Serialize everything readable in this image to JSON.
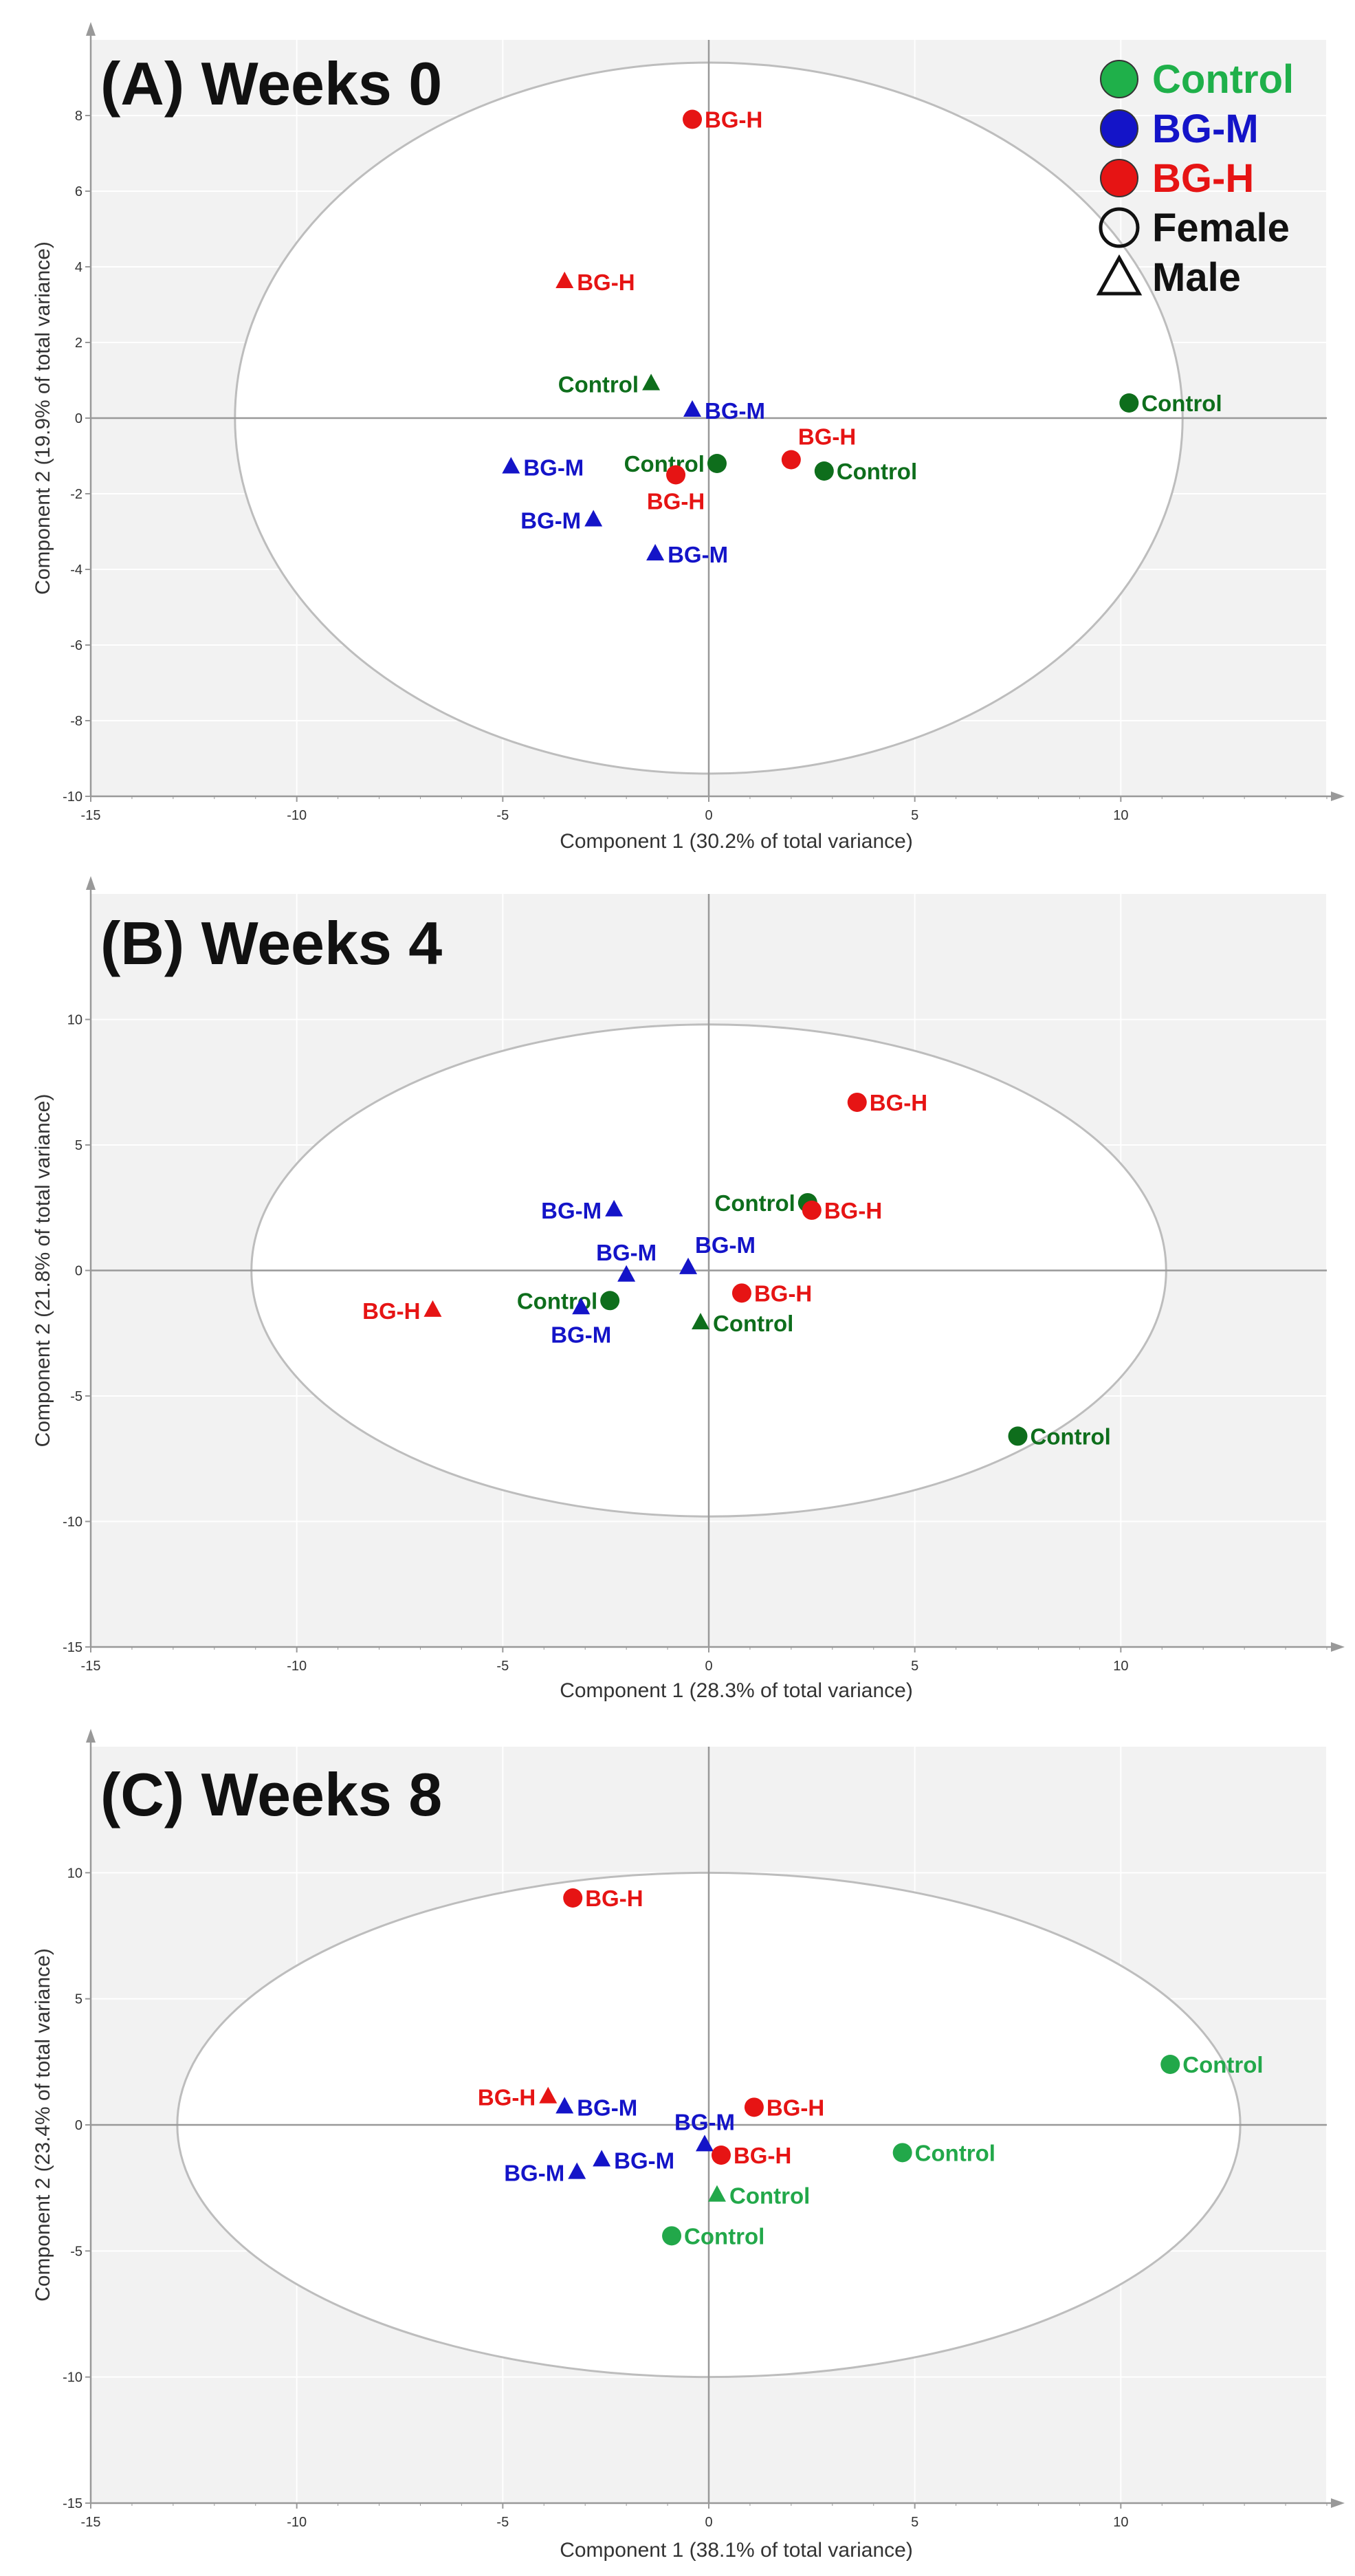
{
  "colors": {
    "control_dark": "#0e6e1c",
    "control_light": "#22a84a",
    "bg_m": "#1414c8",
    "bg_h": "#e61414",
    "plot_bg": "#f2f2f2",
    "axis": "#999999",
    "ellipse": "#bdbdbd"
  },
  "legend": {
    "items": [
      {
        "label": "Control",
        "marker": "circle",
        "color": "#1fb04a"
      },
      {
        "label": "BG-M",
        "marker": "circle",
        "color": "#1414c8"
      },
      {
        "label": "BG-H",
        "marker": "circle",
        "color": "#e61414"
      },
      {
        "label": "Female",
        "marker": "circle-outline",
        "color": "#111111"
      },
      {
        "label": "Male",
        "marker": "triangle-outline",
        "color": "#111111"
      }
    ]
  },
  "chart_data": [
    {
      "type": "scatter",
      "title": "(A) Weeks 0",
      "xlabel": "Component 1 (30.2% of total variance)",
      "ylabel": "Component 2 (19.9% of total variance)",
      "xlim": [
        -15,
        15
      ],
      "ylim": [
        -10,
        10
      ],
      "xticks": [
        -15,
        -10,
        -5,
        0,
        5,
        10
      ],
      "yticks": [
        -10,
        -8,
        -6,
        -4,
        -2,
        0,
        2,
        4,
        6,
        8
      ],
      "grid": true,
      "ellipse": {
        "cx": 0,
        "cy": 0,
        "rx": 11.5,
        "ry": 9.4
      },
      "points": [
        {
          "x": -0.4,
          "y": 7.9,
          "group": "BG-H",
          "sex": "Female",
          "label": "BG-H",
          "label_side": "right"
        },
        {
          "x": -3.5,
          "y": 3.6,
          "group": "BG-H",
          "sex": "Male",
          "label": "BG-H",
          "label_side": "right"
        },
        {
          "x": -1.4,
          "y": 0.9,
          "group": "Control",
          "sex": "Male",
          "label": "Control",
          "label_side": "left"
        },
        {
          "x": -0.4,
          "y": 0.2,
          "group": "BG-M",
          "sex": "Male",
          "label": "BG-M",
          "label_side": "right"
        },
        {
          "x": 10.2,
          "y": 0.4,
          "group": "Control",
          "sex": "Female",
          "label": "Control",
          "label_side": "right"
        },
        {
          "x": -4.8,
          "y": -1.3,
          "group": "BG-M",
          "sex": "Male",
          "label": "BG-M",
          "label_side": "right"
        },
        {
          "x": 0.2,
          "y": -1.2,
          "group": "Control",
          "sex": "Female",
          "label": "Control",
          "label_side": "left"
        },
        {
          "x": 2.0,
          "y": -1.1,
          "group": "BG-H",
          "sex": "Female",
          "label": "BG-H",
          "label_side": "upright"
        },
        {
          "x": 2.8,
          "y": -1.4,
          "group": "Control",
          "sex": "Female",
          "label": "Control",
          "label_side": "right"
        },
        {
          "x": -0.8,
          "y": -1.5,
          "group": "BG-H",
          "sex": "Female",
          "label": "BG-H",
          "label_side": "below"
        },
        {
          "x": -2.8,
          "y": -2.7,
          "group": "BG-M",
          "sex": "Male",
          "label": "BG-M",
          "label_side": "left"
        },
        {
          "x": -1.3,
          "y": -3.6,
          "group": "BG-M",
          "sex": "Male",
          "label": "BG-M",
          "label_side": "right"
        }
      ]
    },
    {
      "type": "scatter",
      "title": "(B) Weeks 4",
      "xlabel": "Component 1 (28.3% of total variance)",
      "ylabel": "Component 2 (21.8% of total variance)",
      "xlim": [
        -15,
        15
      ],
      "ylim": [
        -15,
        15
      ],
      "xticks": [
        -15,
        -10,
        -5,
        0,
        5,
        10
      ],
      "yticks": [
        -15,
        -10,
        -5,
        0,
        5,
        10
      ],
      "grid": true,
      "ellipse": {
        "cx": 0,
        "cy": 0,
        "rx": 11.1,
        "ry": 9.8
      },
      "points": [
        {
          "x": 3.6,
          "y": 6.7,
          "group": "BG-H",
          "sex": "Female",
          "label": "BG-H",
          "label_side": "right"
        },
        {
          "x": 2.4,
          "y": 2.7,
          "group": "Control",
          "sex": "Female",
          "label": "Control",
          "label_side": "left"
        },
        {
          "x": 2.5,
          "y": 2.4,
          "group": "BG-H",
          "sex": "Female",
          "label": "BG-H",
          "label_side": "right"
        },
        {
          "x": -2.3,
          "y": 2.4,
          "group": "BG-M",
          "sex": "Male",
          "label": "BG-M",
          "label_side": "left"
        },
        {
          "x": -2.0,
          "y": -0.2,
          "group": "BG-M",
          "sex": "Male",
          "label": "BG-M",
          "label_side": "above"
        },
        {
          "x": -0.5,
          "y": 0.1,
          "group": "BG-M",
          "sex": "Male",
          "label": "BG-M",
          "label_side": "upright"
        },
        {
          "x": 0.8,
          "y": -0.9,
          "group": "BG-H",
          "sex": "Female",
          "label": "BG-H",
          "label_side": "right"
        },
        {
          "x": -6.7,
          "y": -1.6,
          "group": "BG-H",
          "sex": "Male",
          "label": "BG-H",
          "label_side": "left"
        },
        {
          "x": -2.4,
          "y": -1.2,
          "group": "Control",
          "sex": "Female",
          "label": "Control",
          "label_side": "left"
        },
        {
          "x": -3.1,
          "y": -1.5,
          "group": "BG-M",
          "sex": "Male",
          "label": "BG-M",
          "label_side": "below"
        },
        {
          "x": -0.2,
          "y": -2.1,
          "group": "Control",
          "sex": "Male",
          "label": "Control",
          "label_side": "right"
        },
        {
          "x": 7.5,
          "y": -6.6,
          "group": "Control",
          "sex": "Female",
          "label": "Control",
          "label_side": "right"
        }
      ]
    },
    {
      "type": "scatter",
      "title": "(C) Weeks 8",
      "xlabel": "Component 1 (38.1% of total variance)",
      "ylabel": "Component 2 (23.4% of total variance)",
      "xlim": [
        -15,
        15
      ],
      "ylim": [
        -15,
        15
      ],
      "xticks": [
        -15,
        -10,
        -5,
        0,
        5,
        10
      ],
      "yticks": [
        -15,
        -10,
        -5,
        0,
        5,
        10
      ],
      "grid": true,
      "ellipse": {
        "cx": 0,
        "cy": 0,
        "rx": 12.9,
        "ry": 10.0
      },
      "points": [
        {
          "x": -3.3,
          "y": 9.0,
          "group": "BG-H",
          "sex": "Female",
          "label": "BG-H",
          "label_side": "right"
        },
        {
          "x": 11.2,
          "y": 2.4,
          "group": "Control",
          "sex": "Female",
          "label": "Control",
          "label_side": "right"
        },
        {
          "x": -3.9,
          "y": 1.1,
          "group": "BG-H",
          "sex": "Male",
          "label": "BG-H",
          "label_side": "left"
        },
        {
          "x": -3.5,
          "y": 0.7,
          "group": "BG-M",
          "sex": "Male",
          "label": "BG-M",
          "label_side": "right"
        },
        {
          "x": 1.1,
          "y": 0.7,
          "group": "BG-H",
          "sex": "Female",
          "label": "BG-H",
          "label_side": "right"
        },
        {
          "x": -0.1,
          "y": -0.8,
          "group": "BG-M",
          "sex": "Male",
          "label": "BG-M",
          "label_side": "above"
        },
        {
          "x": 4.7,
          "y": -1.1,
          "group": "Control",
          "sex": "Female",
          "label": "Control",
          "label_side": "right"
        },
        {
          "x": 0.3,
          "y": -1.2,
          "group": "BG-H",
          "sex": "Female",
          "label": "BG-H",
          "label_side": "right"
        },
        {
          "x": -2.6,
          "y": -1.4,
          "group": "BG-M",
          "sex": "Male",
          "label": "BG-M",
          "label_side": "right"
        },
        {
          "x": -3.2,
          "y": -1.9,
          "group": "BG-M",
          "sex": "Male",
          "label": "BG-M",
          "label_side": "left"
        },
        {
          "x": 0.2,
          "y": -2.8,
          "group": "Control",
          "sex": "Male",
          "label": "Control",
          "label_side": "right"
        },
        {
          "x": -0.9,
          "y": -4.4,
          "group": "Control",
          "sex": "Female",
          "label": "Control",
          "label_side": "right"
        }
      ]
    }
  ]
}
